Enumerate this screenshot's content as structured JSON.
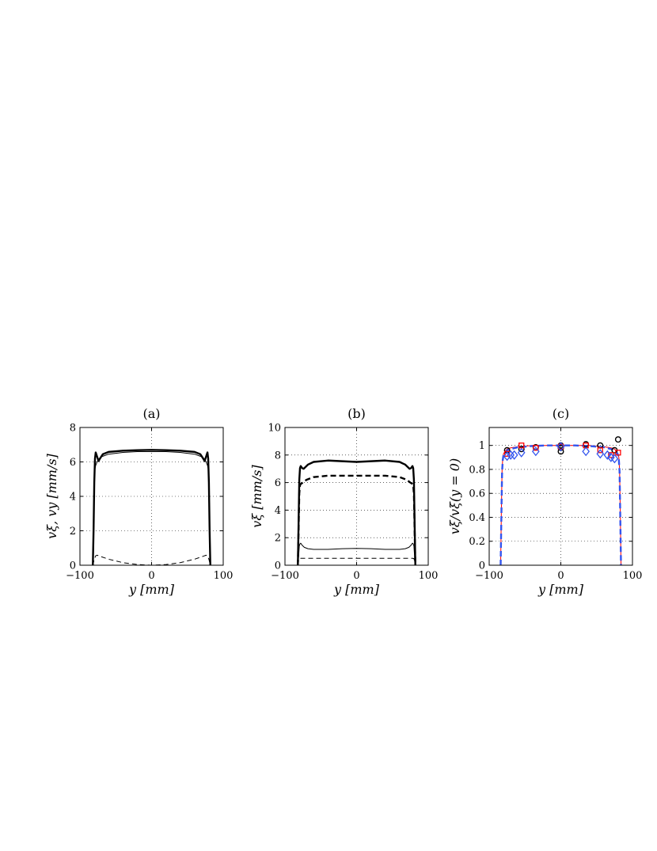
{
  "chart_data": [
    {
      "type": "line",
      "panel_label": "(a)",
      "xlabel": "y [mm]",
      "ylabel": "vξ, vy [mm/s]",
      "xlim": [
        -100,
        100
      ],
      "ylim": [
        0,
        8
      ],
      "xticks": [
        -100,
        0,
        100
      ],
      "yticks": [
        0,
        2,
        4,
        6,
        8
      ],
      "xtick_labels": [
        "−100",
        "0",
        "100"
      ],
      "ytick_labels": [
        "0",
        "2",
        "4",
        "6",
        "8"
      ],
      "grid": "dotted",
      "legend": "none",
      "series": [
        {
          "style": "thick-solid",
          "color": "#000000",
          "x": [
            -82,
            -81,
            -80,
            -79,
            -78,
            -76,
            -74,
            -72,
            -68,
            -60,
            -40,
            -20,
            0,
            20,
            40,
            60,
            68,
            72,
            74,
            76,
            78,
            79,
            80,
            81,
            82
          ],
          "y": [
            0,
            2.0,
            4.8,
            6.2,
            6.55,
            6.3,
            6.05,
            6.2,
            6.45,
            6.58,
            6.65,
            6.68,
            6.7,
            6.68,
            6.65,
            6.58,
            6.45,
            6.2,
            6.05,
            6.3,
            6.55,
            6.2,
            4.8,
            2.0,
            0
          ]
        },
        {
          "style": "thin-solid",
          "color": "#000000",
          "x": [
            -82,
            -81,
            -80,
            -79,
            -78,
            -75,
            -70,
            -60,
            -40,
            -20,
            0,
            20,
            40,
            60,
            70,
            75,
            78,
            79,
            80,
            81,
            82
          ],
          "y": [
            0,
            2.5,
            4.8,
            5.6,
            5.8,
            6.1,
            6.3,
            6.45,
            6.55,
            6.6,
            6.6,
            6.6,
            6.55,
            6.45,
            6.3,
            6.1,
            5.8,
            5.6,
            4.8,
            2.5,
            0
          ]
        },
        {
          "style": "thin-dashed",
          "color": "#000000",
          "x": [
            -82,
            -80,
            -78,
            -76,
            -72,
            -60,
            -40,
            -20,
            0,
            20,
            40,
            60,
            72,
            76,
            78,
            80,
            82
          ],
          "y": [
            0,
            0.35,
            0.55,
            0.58,
            0.52,
            0.35,
            0.15,
            0.04,
            0.0,
            0.04,
            0.15,
            0.35,
            0.52,
            0.58,
            0.55,
            0.35,
            0
          ]
        }
      ]
    },
    {
      "type": "line",
      "panel_label": "(b)",
      "xlabel": "y [mm]",
      "ylabel": "vξ [mm/s]",
      "xlim": [
        -100,
        100
      ],
      "ylim": [
        0,
        10
      ],
      "xticks": [
        -100,
        0,
        100
      ],
      "yticks": [
        0,
        2,
        4,
        6,
        8,
        10
      ],
      "xtick_labels": [
        "−100",
        "0",
        "100"
      ],
      "ytick_labels": [
        "0",
        "2",
        "4",
        "6",
        "8",
        "10"
      ],
      "grid": "dotted",
      "legend": "none",
      "series": [
        {
          "style": "thick-solid",
          "color": "#000000",
          "x": [
            -82,
            -81,
            -80,
            -79,
            -78,
            -76,
            -74,
            -72,
            -68,
            -60,
            -40,
            -20,
            0,
            20,
            40,
            60,
            68,
            72,
            74,
            76,
            78,
            79,
            80,
            81,
            82
          ],
          "y": [
            0,
            3.0,
            6.2,
            7.05,
            7.2,
            7.05,
            7.0,
            7.1,
            7.3,
            7.5,
            7.6,
            7.55,
            7.5,
            7.55,
            7.6,
            7.5,
            7.3,
            7.1,
            7.0,
            7.05,
            7.2,
            7.05,
            6.2,
            3.0,
            0
          ]
        },
        {
          "style": "thick-dashed",
          "color": "#000000",
          "x": [
            -82,
            -81,
            -80,
            -79,
            -78,
            -75,
            -70,
            -60,
            -40,
            -20,
            0,
            20,
            40,
            60,
            70,
            75,
            78,
            79,
            80,
            81,
            82
          ],
          "y": [
            0,
            2.5,
            5.2,
            5.8,
            5.9,
            6.0,
            6.2,
            6.4,
            6.5,
            6.5,
            6.5,
            6.5,
            6.5,
            6.4,
            6.2,
            6.0,
            5.9,
            5.8,
            5.2,
            2.5,
            0
          ]
        },
        {
          "style": "thin-solid",
          "color": "#000000",
          "x": [
            -82,
            -81,
            -80,
            -79,
            -78,
            -76,
            -73,
            -68,
            -60,
            -40,
            -20,
            0,
            20,
            40,
            60,
            68,
            73,
            76,
            78,
            79,
            80,
            81,
            82
          ],
          "y": [
            0,
            0.6,
            1.4,
            1.55,
            1.6,
            1.45,
            1.3,
            1.2,
            1.15,
            1.15,
            1.2,
            1.22,
            1.2,
            1.15,
            1.15,
            1.2,
            1.3,
            1.45,
            1.6,
            1.55,
            1.4,
            0.6,
            0
          ]
        },
        {
          "style": "thin-dashed",
          "color": "#000000",
          "x": [
            -82,
            -81,
            -80,
            -78,
            -60,
            -40,
            -20,
            0,
            20,
            40,
            60,
            78,
            80,
            81,
            82
          ],
          "y": [
            0,
            0.3,
            0.48,
            0.5,
            0.5,
            0.5,
            0.5,
            0.5,
            0.5,
            0.5,
            0.5,
            0.5,
            0.48,
            0.3,
            0
          ]
        }
      ]
    },
    {
      "type": "line",
      "panel_label": "(c)",
      "xlabel": "y [mm]",
      "ylabel": "vξ/vξ(y = 0)",
      "xlim": [
        -100,
        100
      ],
      "ylim": [
        0,
        1.15
      ],
      "xticks": [
        -100,
        0,
        100
      ],
      "yticks": [
        0,
        0.2,
        0.4,
        0.6,
        0.8,
        1
      ],
      "xtick_labels": [
        "−100",
        "0",
        "100"
      ],
      "ytick_labels": [
        "0",
        "0.2",
        "0.4",
        "0.6",
        "0.8",
        "1"
      ],
      "grid": "dotted",
      "legend": "none",
      "series": [
        {
          "style": "thin-solid",
          "color": "#ff0000",
          "x": [
            -84,
            -83,
            -82,
            -81,
            -80,
            -78,
            -75,
            -70,
            -60,
            -40,
            -20,
            0,
            20,
            40,
            60,
            70,
            75,
            78,
            80,
            81,
            82,
            83,
            84
          ],
          "y": [
            0,
            0.45,
            0.8,
            0.9,
            0.93,
            0.95,
            0.97,
            0.98,
            0.99,
            1.0,
            1.0,
            1.0,
            1.0,
            1.0,
            0.99,
            0.98,
            0.97,
            0.95,
            0.93,
            0.9,
            0.8,
            0.45,
            0
          ]
        },
        {
          "style": "thick-dashed",
          "color": "#3355ee",
          "x": [
            -84,
            -83,
            -82,
            -81,
            -80,
            -78,
            -75,
            -70,
            -60,
            -40,
            -20,
            0,
            20,
            40,
            60,
            70,
            75,
            78,
            80,
            81,
            82,
            83,
            84
          ],
          "y": [
            0,
            0.4,
            0.78,
            0.88,
            0.92,
            0.94,
            0.96,
            0.97,
            0.985,
            0.995,
            1.0,
            1.0,
            1.0,
            0.995,
            0.985,
            0.97,
            0.96,
            0.94,
            0.92,
            0.88,
            0.78,
            0.4,
            0
          ]
        },
        {
          "style": "markers",
          "marker": "circle",
          "color": "#000000",
          "x": [
            -75,
            -55,
            -35,
            0,
            0,
            0,
            35,
            55,
            75,
            80
          ],
          "y": [
            0.96,
            0.97,
            0.985,
            1.0,
            0.98,
            0.95,
            1.01,
            1.0,
            0.96,
            1.05
          ]
        },
        {
          "style": "markers",
          "marker": "square",
          "color": "#ff0000",
          "x": [
            -75,
            -55,
            -35,
            0,
            35,
            55,
            70,
            80
          ],
          "y": [
            0.93,
            1.0,
            0.98,
            0.99,
            1.0,
            0.96,
            0.92,
            0.94
          ]
        },
        {
          "style": "markers",
          "marker": "diamond",
          "color": "#3355ee",
          "x": [
            -75,
            -70,
            -65,
            -55,
            -35,
            0,
            35,
            55,
            65,
            70,
            75
          ],
          "y": [
            0.91,
            0.92,
            0.92,
            0.94,
            0.95,
            0.99,
            0.95,
            0.93,
            0.92,
            0.9,
            0.89
          ]
        }
      ]
    }
  ]
}
